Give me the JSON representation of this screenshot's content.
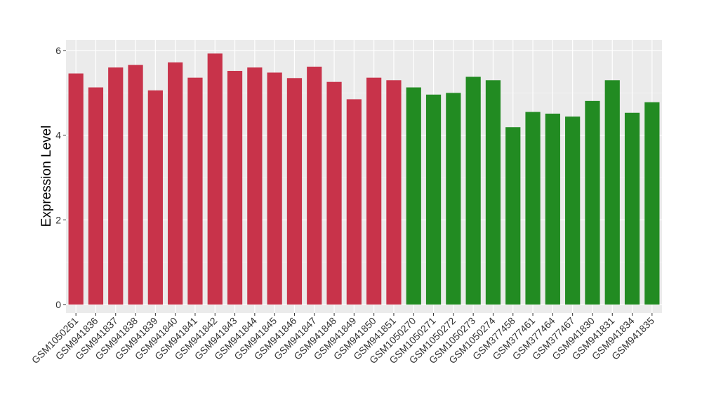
{
  "chart_data": {
    "type": "bar",
    "title": "",
    "xlabel": "",
    "ylabel": "Expression Level",
    "ylim": [
      -0.2,
      6.25
    ],
    "yticks": [
      0,
      2,
      4,
      6
    ],
    "grid": true,
    "legend": "none",
    "categories": [
      "GSM1050261",
      "GSM941836",
      "GSM941837",
      "GSM941838",
      "GSM941839",
      "GSM941840",
      "GSM941841",
      "GSM941842",
      "GSM941843",
      "GSM941844",
      "GSM941845",
      "GSM941846",
      "GSM941847",
      "GSM941848",
      "GSM941849",
      "GSM941850",
      "GSM941851",
      "GSM1050270",
      "GSM1050271",
      "GSM1050272",
      "GSM1050273",
      "GSM1050274",
      "GSM377458",
      "GSM377461",
      "GSM377464",
      "GSM377467",
      "GSM941830",
      "GSM941831",
      "GSM941834",
      "GSM941835"
    ],
    "values": [
      5.46,
      5.13,
      5.6,
      5.66,
      5.06,
      5.72,
      5.36,
      5.93,
      5.52,
      5.6,
      5.48,
      5.35,
      5.62,
      5.26,
      4.85,
      5.36,
      5.3,
      5.13,
      4.96,
      5.0,
      5.38,
      5.3,
      4.19,
      4.55,
      4.51,
      4.44,
      4.81,
      5.3,
      4.53,
      4.78
    ],
    "colors": [
      "#C8334A",
      "#C8334A",
      "#C8334A",
      "#C8334A",
      "#C8334A",
      "#C8334A",
      "#C8334A",
      "#C8334A",
      "#C8334A",
      "#C8334A",
      "#C8334A",
      "#C8334A",
      "#C8334A",
      "#C8334A",
      "#C8334A",
      "#C8334A",
      "#C8334A",
      "#228B22",
      "#228B22",
      "#228B22",
      "#228B22",
      "#228B22",
      "#228B22",
      "#228B22",
      "#228B22",
      "#228B22",
      "#228B22",
      "#228B22",
      "#228B22",
      "#228B22"
    ]
  }
}
